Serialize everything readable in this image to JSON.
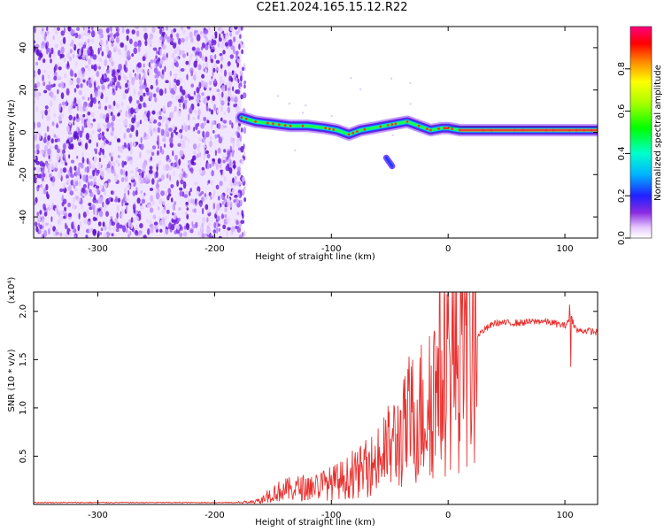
{
  "title": "C2E1.2024.165.15.12.R22",
  "colorbar_label": "Normalized spectral amplitude",
  "colors": {
    "snr_line": "#e8312f",
    "noise": "#7a1fe0",
    "trace_core": "#e83040"
  },
  "chart_data": [
    {
      "type": "heatmap",
      "title": "",
      "xlabel": "Height of straight line (km)",
      "ylabel": "Frequency (Hz)",
      "xlim": [
        -355,
        128
      ],
      "ylim": [
        -50,
        50
      ],
      "xticks": [
        -300,
        -200,
        -100,
        0,
        100
      ],
      "yticks": [
        -40,
        -20,
        0,
        20,
        40
      ],
      "colorbar": {
        "label": "Normalized spectral amplitude",
        "range": [
          0.0,
          1.0
        ],
        "ticks": [
          0.0,
          0.2,
          0.4,
          0.6,
          0.8
        ]
      },
      "noise_region_x": [
        -355,
        -177
      ],
      "signal_trace": {
        "x": [
          -177,
          -165,
          -150,
          -135,
          -120,
          -105,
          -95,
          -85,
          -75,
          -65,
          -55,
          -45,
          -35,
          -25,
          -15,
          -5,
          0,
          10,
          30,
          50,
          70,
          90,
          110,
          128
        ],
        "freq_hz": [
          7,
          5,
          4,
          3,
          3,
          2,
          1,
          -1,
          1,
          2,
          3,
          4,
          5,
          3,
          1,
          2,
          2,
          1,
          1,
          1,
          1,
          1,
          1,
          1
        ]
      },
      "side_feature": {
        "x": [
          -53,
          -48
        ],
        "freq_hz": [
          -12,
          -16
        ]
      }
    },
    {
      "type": "line",
      "title": "",
      "xlabel": "Height of straight line (km)",
      "ylabel": "SNR (10 * v/v)",
      "y_multiplier": "(x10⁴)",
      "xlim": [
        -355,
        128
      ],
      "ylim": [
        0,
        2.2
      ],
      "xticks": [
        -300,
        -200,
        -100,
        0,
        100
      ],
      "yticks": [
        0.5,
        1.0,
        1.5,
        2.0
      ],
      "ytick_labels": [
        "0.5",
        "1.0",
        "1.5",
        "2.0"
      ],
      "series": [
        {
          "x": [
            -355,
            -300,
            -250,
            -200,
            -175,
            -160,
            -150,
            -140,
            -120,
            -100,
            -80,
            -60,
            -50,
            -40,
            -30,
            -20,
            -15,
            -10,
            -5,
            0,
            10,
            20,
            30,
            40,
            60,
            80,
            90,
            100,
            105,
            110,
            120,
            128
          ],
          "values": [
            0.02,
            0.02,
            0.02,
            0.02,
            0.02,
            0.04,
            0.12,
            0.15,
            0.18,
            0.22,
            0.3,
            0.45,
            0.6,
            0.7,
            0.9,
            1.0,
            1.1,
            1.25,
            1.35,
            1.45,
            1.55,
            1.7,
            1.8,
            1.88,
            1.88,
            1.9,
            1.88,
            1.85,
            1.95,
            1.8,
            1.8,
            1.78
          ]
        }
      ]
    }
  ]
}
